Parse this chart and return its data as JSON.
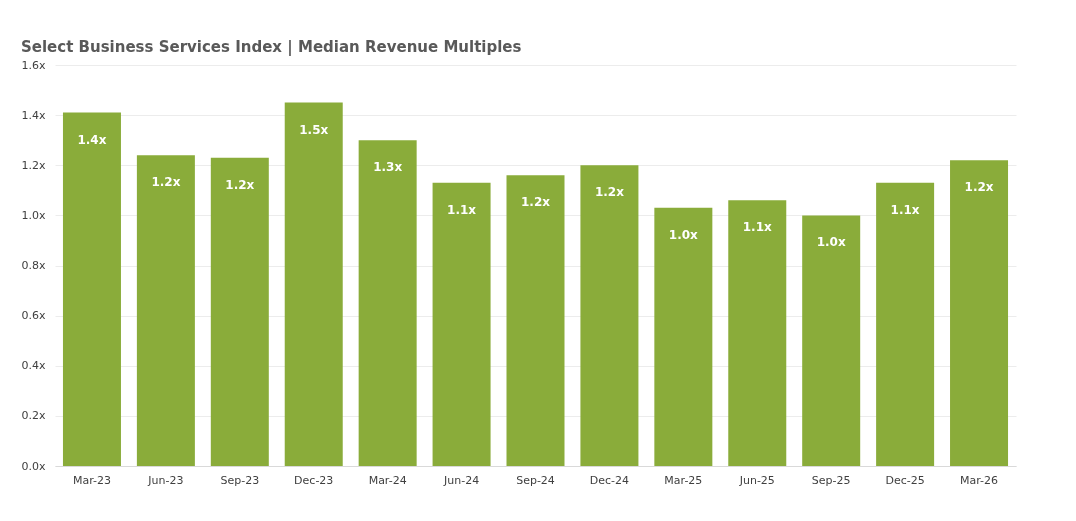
{
  "chart_data": {
    "type": "bar",
    "title": "Select Business Services Index | Median Revenue Multiples",
    "categories": [
      "Mar-23",
      "Jun-23",
      "Sep-23",
      "Dec-23",
      "Mar-24",
      "Jun-24",
      "Sep-24",
      "Dec-24",
      "Mar-25",
      "Jun-25",
      "Sep-25",
      "Dec-25",
      "Mar-26"
    ],
    "values": [
      1.41,
      1.24,
      1.23,
      1.45,
      1.3,
      1.13,
      1.16,
      1.2,
      1.03,
      1.06,
      1.0,
      1.13,
      1.22
    ],
    "value_labels": [
      "1.4x",
      "1.2x",
      "1.2x",
      "1.5x",
      "1.3x",
      "1.1x",
      "1.2x",
      "1.2x",
      "1.0x",
      "1.1x",
      "1.0x",
      "1.1x",
      "1.2x"
    ],
    "color": "#8aac3a",
    "ylim": [
      0,
      1.6
    ],
    "yticks": [
      {
        "value": 0,
        "label": "0.0x"
      },
      {
        "value": 0.2,
        "label": "0.2x"
      },
      {
        "value": 0.4,
        "label": "0.4x"
      },
      {
        "value": 0.6,
        "label": "0.6x"
      },
      {
        "value": 0.8,
        "label": "0.8x"
      },
      {
        "value": 1.0,
        "label": "1.0x"
      },
      {
        "value": 1.2,
        "label": "1.2x"
      },
      {
        "value": 1.4,
        "label": "1.4x"
      },
      {
        "value": 1.6,
        "label": "1.6x"
      }
    ],
    "grid": "y"
  }
}
